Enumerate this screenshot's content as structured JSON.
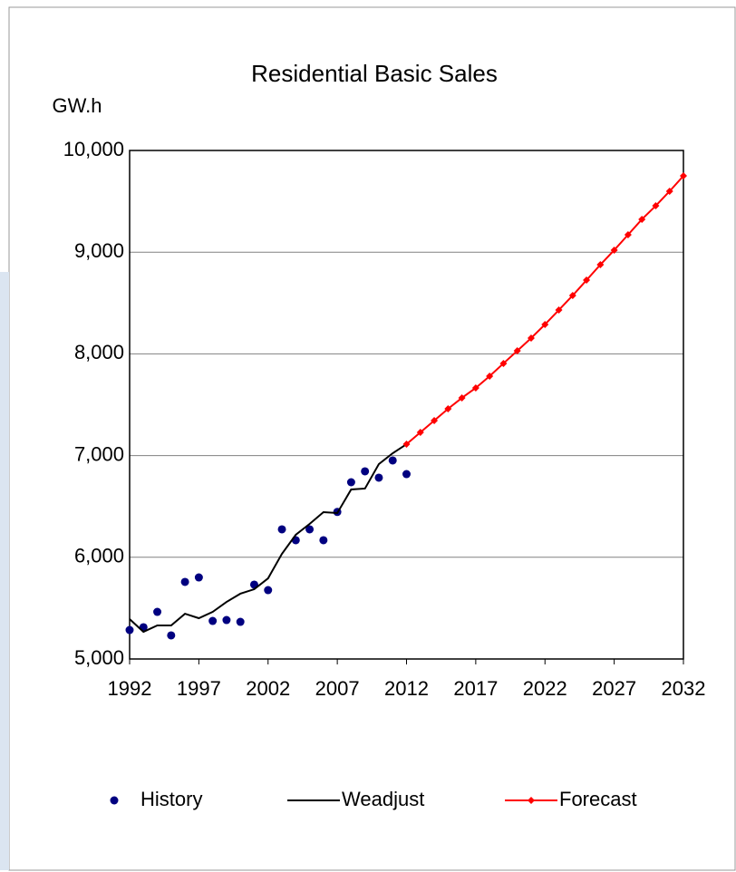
{
  "chart_data": {
    "type": "line",
    "title": "Residential Basic Sales",
    "y_label": "GW.h",
    "xlim": [
      1992,
      2032
    ],
    "xticks": [
      1992,
      1997,
      2002,
      2007,
      2012,
      2017,
      2022,
      2027,
      2032
    ],
    "ylim": [
      5000,
      10000
    ],
    "yticks": [
      {
        "value": 5000,
        "label": "5,000"
      },
      {
        "value": 6000,
        "label": "6,000"
      },
      {
        "value": 7000,
        "label": "7,000"
      },
      {
        "value": 8000,
        "label": "8,000"
      },
      {
        "value": 9000,
        "label": "9,000"
      },
      {
        "value": 10000,
        "label": "10,000"
      }
    ],
    "grid": true,
    "legend": "bottom",
    "series": [
      {
        "name": "History",
        "color": "#000080",
        "style": "scatter",
        "x": [
          1992,
          1993,
          1994,
          1995,
          1996,
          1997,
          1998,
          1999,
          2000,
          2001,
          2002,
          2003,
          2004,
          2005,
          2006,
          2007,
          2008,
          2009,
          2010,
          2011,
          2012
        ],
        "values": [
          5285,
          5312,
          5463,
          5232,
          5758,
          5802,
          5374,
          5383,
          5365,
          5731,
          5677,
          6275,
          6168,
          6275,
          6168,
          6446,
          6738,
          6845,
          6783,
          6952,
          6818
        ]
      },
      {
        "name": "Weadjust",
        "color": "#000000",
        "style": "line",
        "x": [
          1992,
          1993,
          1994,
          1995,
          1996,
          1997,
          1998,
          1999,
          2000,
          2001,
          2002,
          2003,
          2004,
          2005,
          2006,
          2007,
          2008,
          2009,
          2010,
          2011,
          2012
        ],
        "values": [
          5392,
          5267,
          5330,
          5330,
          5445,
          5401,
          5463,
          5561,
          5642,
          5686,
          5793,
          6034,
          6221,
          6328,
          6444,
          6435,
          6667,
          6676,
          6916,
          7023,
          7112
        ]
      },
      {
        "name": "Forecast",
        "color": "#ff0000",
        "style": "line-marker",
        "x": [
          2012,
          2013,
          2014,
          2015,
          2016,
          2017,
          2018,
          2019,
          2020,
          2021,
          2022,
          2023,
          2024,
          2025,
          2026,
          2027,
          2028,
          2029,
          2030,
          2031,
          2032
        ],
        "values": [
          7112,
          7228,
          7344,
          7460,
          7567,
          7665,
          7781,
          7906,
          8030,
          8155,
          8289,
          8431,
          8574,
          8725,
          8877,
          9020,
          9171,
          9323,
          9456,
          9599,
          9750
        ]
      }
    ]
  }
}
